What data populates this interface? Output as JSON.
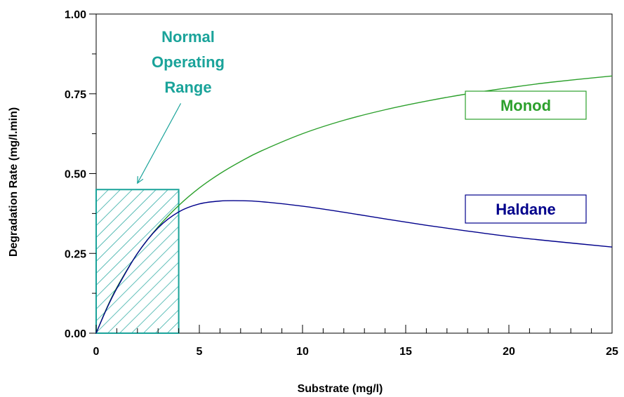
{
  "chart_data": {
    "type": "line",
    "xlabel": "Substrate (mg/l)",
    "ylabel": "Degradation Rate (mg/l.min)",
    "xlim": [
      0,
      25
    ],
    "ylim": [
      0,
      1
    ],
    "x_ticks": [
      "0",
      "5",
      "10",
      "15",
      "20",
      "25"
    ],
    "y_ticks": [
      "0.00",
      "0.25",
      "0.50",
      "0.75",
      "1.00"
    ],
    "grid": false,
    "series": [
      {
        "name": "Monod",
        "color": "#2ca02c",
        "x": [
          0,
          0.5,
          1,
          2,
          3,
          4,
          5,
          6,
          7,
          8,
          10,
          12,
          14,
          16,
          18,
          20,
          22,
          25
        ],
        "y": [
          0,
          0.077,
          0.143,
          0.25,
          0.333,
          0.4,
          0.455,
          0.5,
          0.538,
          0.571,
          0.625,
          0.667,
          0.7,
          0.727,
          0.75,
          0.769,
          0.786,
          0.806
        ]
      },
      {
        "name": "Haldane",
        "color": "#00008b",
        "x": [
          0,
          0.5,
          1,
          2,
          3,
          4,
          5,
          6,
          7,
          8,
          10,
          12,
          14,
          16,
          18,
          20,
          22,
          25
        ],
        "y": [
          0,
          0.075,
          0.14,
          0.25,
          0.33,
          0.38,
          0.405,
          0.414,
          0.415,
          0.412,
          0.398,
          0.379,
          0.358,
          0.338,
          0.32,
          0.303,
          0.289,
          0.27
        ]
      }
    ],
    "legend": [
      {
        "label": "Monod",
        "color": "#2ca02c"
      },
      {
        "label": "Haldane",
        "color": "#00008b"
      }
    ],
    "annotation": {
      "lines": [
        "Normal",
        "Operating",
        "Range"
      ],
      "color": "#1aa39a",
      "region": {
        "x": [
          0,
          4
        ],
        "y": [
          0,
          0.45
        ]
      },
      "arrow_from": {
        "x": 4.1,
        "y": 0.72
      },
      "arrow_to": {
        "x": 2.0,
        "y": 0.47
      }
    }
  }
}
